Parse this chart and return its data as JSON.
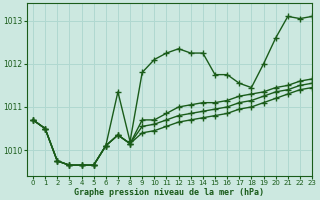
{
  "background_color": "#cce8e0",
  "grid_color": "#b0d8d0",
  "line_color": "#1a5c1a",
  "xlabel": "Graphe pression niveau de la mer (hPa)",
  "xlim": [
    -0.5,
    23
  ],
  "ylim": [
    1009.4,
    1013.4
  ],
  "yticks": [
    1010,
    1011,
    1012,
    1013
  ],
  "xticks": [
    0,
    1,
    2,
    3,
    4,
    5,
    6,
    7,
    8,
    9,
    10,
    11,
    12,
    13,
    14,
    15,
    16,
    17,
    18,
    19,
    20,
    21,
    22,
    23
  ],
  "series": [
    {
      "x": [
        0,
        1,
        2,
        3,
        4,
        5,
        6,
        7,
        8,
        9,
        10,
        11,
        12,
        13,
        14,
        15,
        16,
        17,
        18,
        19,
        20,
        21,
        22,
        23
      ],
      "y": [
        1010.7,
        1010.5,
        1009.75,
        1009.65,
        1009.65,
        1009.65,
        1010.1,
        1011.35,
        1010.2,
        1011.8,
        1012.1,
        1012.25,
        1012.35,
        1012.25,
        1012.25,
        1011.75,
        1011.75,
        1011.55,
        1011.45,
        1012.0,
        1012.6,
        1013.1,
        1013.05,
        1013.1
      ],
      "linestyle": "-",
      "marker": "+"
    },
    {
      "x": [
        0,
        1,
        2,
        3,
        4,
        5,
        6,
        7,
        8,
        9,
        10,
        11,
        12,
        13,
        14,
        15,
        16,
        17,
        18,
        19,
        20,
        21,
        22,
        23
      ],
      "y": [
        1010.7,
        1010.5,
        1009.75,
        1009.65,
        1009.65,
        1009.65,
        1010.1,
        1010.35,
        1010.15,
        1010.7,
        1010.7,
        1010.85,
        1011.0,
        1011.05,
        1011.1,
        1011.1,
        1011.15,
        1011.25,
        1011.3,
        1011.35,
        1011.45,
        1011.5,
        1011.6,
        1011.65
      ],
      "linestyle": "-",
      "marker": "+"
    },
    {
      "x": [
        0,
        1,
        2,
        3,
        4,
        5,
        6,
        7,
        8,
        9,
        10,
        11,
        12,
        13,
        14,
        15,
        16,
        17,
        18,
        19,
        20,
        21,
        22,
        23
      ],
      "y": [
        1010.7,
        1010.5,
        1009.75,
        1009.65,
        1009.65,
        1009.65,
        1010.1,
        1010.35,
        1010.15,
        1010.55,
        1010.6,
        1010.7,
        1010.8,
        1010.85,
        1010.9,
        1010.95,
        1011.0,
        1011.1,
        1011.15,
        1011.25,
        1011.35,
        1011.4,
        1011.5,
        1011.55
      ],
      "linestyle": "-",
      "marker": "+"
    },
    {
      "x": [
        0,
        1,
        2,
        3,
        4,
        5,
        6,
        7,
        8,
        9,
        10,
        11,
        12,
        13,
        14,
        15,
        16,
        17,
        18,
        19,
        20,
        21,
        22,
        23
      ],
      "y": [
        1010.7,
        1010.5,
        1009.75,
        1009.65,
        1009.65,
        1009.65,
        1010.1,
        1010.35,
        1010.15,
        1010.4,
        1010.45,
        1010.55,
        1010.65,
        1010.7,
        1010.75,
        1010.8,
        1010.85,
        1010.95,
        1011.0,
        1011.1,
        1011.2,
        1011.3,
        1011.4,
        1011.45
      ],
      "linestyle": "-",
      "marker": "+"
    }
  ],
  "markersize": 4,
  "linewidth": 1.0
}
